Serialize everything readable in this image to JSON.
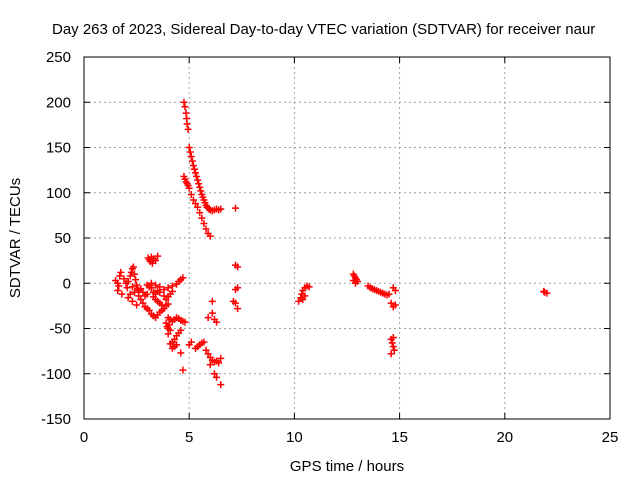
{
  "chart_data": {
    "type": "scatter",
    "title": "Day 263 of 2023, Sidereal Day-to-day VTEC variation (SDTVAR) for receiver naur",
    "xlabel": "GPS time / hours",
    "ylabel": "SDTVAR / TECUs",
    "xlim": [
      0,
      25
    ],
    "ylim": [
      -150,
      250
    ],
    "xticks": [
      "0",
      "5",
      "10",
      "15",
      "20",
      "25"
    ],
    "yticks": [
      "-150",
      "-100",
      "-50",
      "0",
      "50",
      "100",
      "150",
      "200",
      "250"
    ],
    "grid": true,
    "marker": "+",
    "series": [
      {
        "name": "SDTVAR",
        "color": "#ff0000",
        "points": [
          [
            1.5,
            3
          ],
          [
            1.6,
            0
          ],
          [
            1.65,
            -3
          ],
          [
            1.7,
            8
          ],
          [
            1.75,
            12
          ],
          [
            1.6,
            -8
          ],
          [
            1.8,
            -12
          ],
          [
            1.9,
            5
          ],
          [
            2.0,
            0
          ],
          [
            2.05,
            -5
          ],
          [
            2.1,
            2
          ],
          [
            2.2,
            8
          ],
          [
            2.25,
            12
          ],
          [
            2.3,
            16
          ],
          [
            2.35,
            18
          ],
          [
            2.4,
            10
          ],
          [
            2.45,
            4
          ],
          [
            2.5,
            -2
          ],
          [
            2.55,
            -6
          ],
          [
            2.3,
            -4
          ],
          [
            2.4,
            -10
          ],
          [
            2.6,
            -14
          ],
          [
            2.7,
            -18
          ],
          [
            2.2,
            -12
          ],
          [
            2.1,
            -16
          ],
          [
            2.3,
            -20
          ],
          [
            2.5,
            -24
          ],
          [
            2.6,
            -8
          ],
          [
            2.7,
            -6
          ],
          [
            2.8,
            -10
          ],
          [
            2.9,
            -14
          ],
          [
            3.0,
            -12
          ],
          [
            2.8,
            -22
          ],
          [
            2.9,
            -26
          ],
          [
            3.0,
            -28
          ],
          [
            3.1,
            -30
          ],
          [
            3.2,
            -34
          ],
          [
            3.3,
            -36
          ],
          [
            3.4,
            -38
          ],
          [
            3.5,
            -35
          ],
          [
            3.6,
            -32
          ],
          [
            3.7,
            -30
          ],
          [
            3.8,
            -28
          ],
          [
            3.9,
            -25
          ],
          [
            4.0,
            -23
          ],
          [
            3.3,
            -15
          ],
          [
            3.4,
            -18
          ],
          [
            3.5,
            -20
          ],
          [
            3.6,
            -22
          ],
          [
            3.7,
            -24
          ],
          [
            3.2,
            -5
          ],
          [
            3.3,
            -10
          ],
          [
            3.4,
            -12
          ],
          [
            3.5,
            -8
          ],
          [
            3.6,
            -10
          ],
          [
            3.8,
            -14
          ],
          [
            3.9,
            -18
          ],
          [
            4.0,
            -15
          ],
          [
            4.1,
            -12
          ],
          [
            4.2,
            -9
          ],
          [
            3.0,
            -2
          ],
          [
            3.1,
            -4
          ],
          [
            3.2,
            0
          ],
          [
            3.4,
            -2
          ],
          [
            3.6,
            -4
          ],
          [
            3.8,
            -7
          ],
          [
            4.0,
            -5
          ],
          [
            4.2,
            -3
          ],
          [
            4.4,
            -1
          ],
          [
            4.5,
            2
          ],
          [
            4.6,
            4
          ],
          [
            4.7,
            6
          ],
          [
            3.05,
            28
          ],
          [
            3.1,
            26
          ],
          [
            3.15,
            24
          ],
          [
            3.2,
            29
          ],
          [
            3.3,
            27
          ],
          [
            3.4,
            25
          ],
          [
            3.5,
            30
          ],
          [
            3.25,
            22
          ],
          [
            4.0,
            -38
          ],
          [
            4.1,
            -40
          ],
          [
            4.2,
            -42
          ],
          [
            4.3,
            -40
          ],
          [
            4.4,
            -38
          ],
          [
            4.5,
            -39
          ],
          [
            4.6,
            -41
          ],
          [
            4.7,
            -42
          ],
          [
            4.8,
            -43
          ],
          [
            3.9,
            -44
          ],
          [
            3.95,
            -48
          ],
          [
            4.0,
            -50
          ],
          [
            4.05,
            -46
          ],
          [
            4.1,
            -52
          ],
          [
            4.0,
            -56
          ],
          [
            4.1,
            -67
          ],
          [
            4.2,
            -65
          ],
          [
            4.3,
            -62
          ],
          [
            4.4,
            -58
          ],
          [
            4.5,
            -55
          ],
          [
            4.6,
            -52
          ],
          [
            4.2,
            -72
          ],
          [
            4.3,
            -70
          ],
          [
            4.4,
            -68
          ],
          [
            4.6,
            -77
          ],
          [
            4.7,
            -96
          ],
          [
            5.0,
            -68
          ],
          [
            5.1,
            -65
          ],
          [
            5.3,
            -72
          ],
          [
            5.4,
            -70
          ],
          [
            5.5,
            -68
          ],
          [
            5.6,
            -66
          ],
          [
            5.7,
            -65
          ],
          [
            5.8,
            -74
          ],
          [
            5.9,
            -78
          ],
          [
            6.0,
            -82
          ],
          [
            6.1,
            -85
          ],
          [
            6.2,
            -87
          ],
          [
            6.3,
            -86
          ],
          [
            6.4,
            -88
          ],
          [
            6.0,
            -90
          ],
          [
            6.2,
            -100
          ],
          [
            6.3,
            -104
          ],
          [
            6.5,
            -112
          ],
          [
            6.5,
            -83
          ],
          [
            5.9,
            -38
          ],
          [
            6.1,
            -33
          ],
          [
            6.2,
            -40
          ],
          [
            6.3,
            -43
          ],
          [
            6.1,
            -20
          ],
          [
            4.75,
            200
          ],
          [
            4.8,
            195
          ],
          [
            4.85,
            188
          ],
          [
            4.88,
            182
          ],
          [
            4.9,
            176
          ],
          [
            4.95,
            170
          ],
          [
            4.75,
            118
          ],
          [
            4.8,
            115
          ],
          [
            4.85,
            112
          ],
          [
            4.9,
            110
          ],
          [
            4.95,
            108
          ],
          [
            5.0,
            105
          ],
          [
            5.0,
            150
          ],
          [
            5.05,
            145
          ],
          [
            5.1,
            140
          ],
          [
            5.15,
            135
          ],
          [
            5.2,
            130
          ],
          [
            5.25,
            126
          ],
          [
            5.3,
            122
          ],
          [
            5.35,
            118
          ],
          [
            5.4,
            114
          ],
          [
            5.45,
            110
          ],
          [
            5.5,
            106
          ],
          [
            5.55,
            102
          ],
          [
            5.6,
            98
          ],
          [
            5.65,
            95
          ],
          [
            5.7,
            92
          ],
          [
            5.75,
            89
          ],
          [
            5.8,
            86
          ],
          [
            5.85,
            84
          ],
          [
            5.9,
            83
          ],
          [
            5.95,
            82
          ],
          [
            6.0,
            81
          ],
          [
            6.1,
            80
          ],
          [
            6.2,
            81
          ],
          [
            6.3,
            82
          ],
          [
            6.4,
            81
          ],
          [
            6.5,
            82
          ],
          [
            5.1,
            98
          ],
          [
            5.2,
            92
          ],
          [
            5.3,
            88
          ],
          [
            5.4,
            84
          ],
          [
            5.5,
            78
          ],
          [
            5.6,
            72
          ],
          [
            5.7,
            66
          ],
          [
            5.8,
            60
          ],
          [
            5.9,
            55
          ],
          [
            6.0,
            52
          ],
          [
            7.2,
            83
          ],
          [
            7.2,
            20
          ],
          [
            7.3,
            18
          ],
          [
            7.2,
            -7
          ],
          [
            7.3,
            -5
          ],
          [
            7.1,
            -20
          ],
          [
            7.2,
            -22
          ],
          [
            7.3,
            -28
          ],
          [
            10.2,
            -20
          ],
          [
            10.3,
            -16
          ],
          [
            10.35,
            -12
          ],
          [
            10.4,
            -8
          ],
          [
            10.5,
            -5
          ],
          [
            10.6,
            -3
          ],
          [
            10.7,
            -4
          ],
          [
            10.4,
            -18
          ],
          [
            10.5,
            -14
          ],
          [
            12.8,
            10
          ],
          [
            12.85,
            8
          ],
          [
            12.9,
            6
          ],
          [
            12.95,
            4
          ],
          [
            13.0,
            2
          ],
          [
            12.8,
            3
          ],
          [
            12.9,
            0
          ],
          [
            13.5,
            -3
          ],
          [
            13.6,
            -5
          ],
          [
            13.7,
            -6
          ],
          [
            13.8,
            -7
          ],
          [
            13.9,
            -8
          ],
          [
            14.0,
            -9
          ],
          [
            14.1,
            -10
          ],
          [
            14.2,
            -11
          ],
          [
            14.3,
            -12
          ],
          [
            14.4,
            -13
          ],
          [
            14.5,
            -12
          ],
          [
            14.7,
            -5
          ],
          [
            14.8,
            -8
          ],
          [
            14.6,
            -22
          ],
          [
            14.7,
            -26
          ],
          [
            14.8,
            -24
          ],
          [
            14.6,
            -62
          ],
          [
            14.65,
            -66
          ],
          [
            14.7,
            -70
          ],
          [
            14.75,
            -74
          ],
          [
            14.6,
            -78
          ],
          [
            14.7,
            -60
          ],
          [
            21.9,
            -10
          ],
          [
            22.0,
            -11
          ],
          [
            21.85,
            -9
          ]
        ]
      }
    ]
  }
}
